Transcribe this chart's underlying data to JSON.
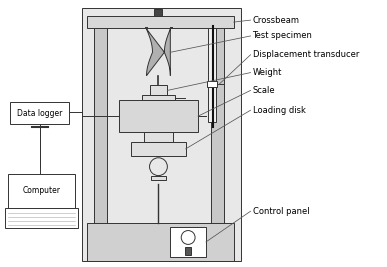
{
  "labels": {
    "crossbeam": "Crossbeam",
    "test_specimen": "Test specimen",
    "displacement_transducer": "Displacement transducer",
    "weight": "Weight",
    "scale": "Scale",
    "loading_disk": "Loading disk",
    "control_panel": "Control panel",
    "data_logger": "Data logger",
    "computer": "Computer"
  },
  "colors": {
    "background": "#ffffff",
    "column_fill": "#c8c8c8",
    "crossbeam_fill": "#d8d8d8",
    "base_fill": "#d0d0d0",
    "specimen_fill": "#b0b0b0",
    "weight_fill": "#e0e0e0",
    "scale_fill": "#d8d8d8",
    "transducer_fill": "#f0f0f0",
    "outline": "#333333",
    "leader": "#555555",
    "text": "#000000",
    "outer_frame": "#e8e8e8"
  },
  "figsize": [
    3.87,
    2.67
  ],
  "dpi": 100
}
